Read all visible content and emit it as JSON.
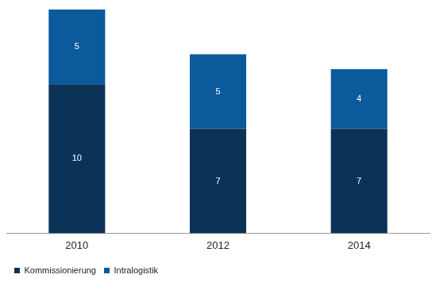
{
  "chart_data": {
    "type": "bar",
    "stacked": true,
    "categories": [
      "2010",
      "2012",
      "2014"
    ],
    "series": [
      {
        "name": "Kommissionierung",
        "color": "#0b3358",
        "values": [
          10,
          7,
          7
        ]
      },
      {
        "name": "Intralogistik",
        "color": "#0a5a9c",
        "values": [
          5,
          5,
          4
        ]
      }
    ],
    "ylim": [
      0,
      15
    ],
    "grid": false,
    "legend": "bottom-left",
    "data_labels": true,
    "tick_labels": "x"
  }
}
